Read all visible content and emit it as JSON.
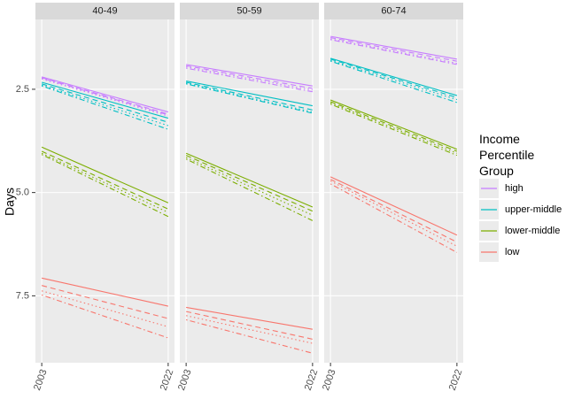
{
  "chart_data": {
    "type": "line",
    "ylabel": "Days",
    "x": [
      2003,
      2022
    ],
    "xlim": [
      2002.05,
      2022.95
    ],
    "xticks": [
      2003,
      2022
    ],
    "ylim": [
      0.81,
      9.12
    ],
    "yticks": [
      2.5,
      {
        "value": 5,
        "label": "5.0"
      },
      7.5
    ],
    "reverse_y": true,
    "grid": true,
    "legend": {
      "title": "Income Percentile Group",
      "entries": [
        {
          "name": "high",
          "color": "#C77CFF"
        },
        {
          "name": "upper-middle",
          "color": "#00BFC4"
        },
        {
          "name": "lower-middle",
          "color": "#7CAE00"
        },
        {
          "name": "low",
          "color": "#F8766D"
        }
      ]
    },
    "facets": [
      {
        "title": "40-49",
        "series": [
          {
            "name": "high",
            "color": "#C77CFF",
            "linetype": "solid",
            "values": [
              2.2,
              3.05
            ]
          },
          {
            "name": "high",
            "color": "#C77CFF",
            "linetype": "dashed",
            "values": [
              2.22,
              3.1
            ]
          },
          {
            "name": "high",
            "color": "#C77CFF",
            "linetype": "dotted",
            "values": [
              2.25,
              3.15
            ]
          },
          {
            "name": "high",
            "color": "#C77CFF",
            "linetype": "dotdash",
            "values": [
              2.23,
              3.12
            ]
          },
          {
            "name": "upper-middle",
            "color": "#00BFC4",
            "linetype": "solid",
            "values": [
              2.33,
              3.2
            ]
          },
          {
            "name": "upper-middle",
            "color": "#00BFC4",
            "linetype": "dashed",
            "values": [
              2.37,
              3.3
            ]
          },
          {
            "name": "upper-middle",
            "color": "#00BFC4",
            "linetype": "dotted",
            "values": [
              2.4,
              3.38
            ]
          },
          {
            "name": "upper-middle",
            "color": "#00BFC4",
            "linetype": "dotdash",
            "values": [
              2.42,
              3.47
            ]
          },
          {
            "name": "lower-middle",
            "color": "#7CAE00",
            "linetype": "solid",
            "values": [
              3.9,
              5.25
            ]
          },
          {
            "name": "lower-middle",
            "color": "#7CAE00",
            "linetype": "dashed",
            "values": [
              4.0,
              5.4
            ]
          },
          {
            "name": "lower-middle",
            "color": "#7CAE00",
            "linetype": "dotted",
            "values": [
              4.05,
              5.48
            ]
          },
          {
            "name": "lower-middle",
            "color": "#7CAE00",
            "linetype": "dotdash",
            "values": [
              4.08,
              5.58
            ]
          },
          {
            "name": "low",
            "color": "#F8766D",
            "linetype": "solid",
            "values": [
              7.07,
              7.75
            ]
          },
          {
            "name": "low",
            "color": "#F8766D",
            "linetype": "dashed",
            "values": [
              7.25,
              8.05
            ]
          },
          {
            "name": "low",
            "color": "#F8766D",
            "linetype": "dotted",
            "values": [
              7.38,
              8.25
            ]
          },
          {
            "name": "low",
            "color": "#F8766D",
            "linetype": "dotdash",
            "values": [
              7.48,
              8.52
            ]
          }
        ]
      },
      {
        "title": "50-59",
        "series": [
          {
            "name": "high",
            "color": "#C77CFF",
            "linetype": "solid",
            "values": [
              1.9,
              2.42
            ]
          },
          {
            "name": "high",
            "color": "#C77CFF",
            "linetype": "dashed",
            "values": [
              1.93,
              2.48
            ]
          },
          {
            "name": "high",
            "color": "#C77CFF",
            "linetype": "dotted",
            "values": [
              1.96,
              2.52
            ]
          },
          {
            "name": "high",
            "color": "#C77CFF",
            "linetype": "dotdash",
            "values": [
              1.99,
              2.56
            ]
          },
          {
            "name": "upper-middle",
            "color": "#00BFC4",
            "linetype": "solid",
            "values": [
              2.3,
              2.9
            ]
          },
          {
            "name": "upper-middle",
            "color": "#00BFC4",
            "linetype": "dashed",
            "values": [
              2.33,
              3.0
            ]
          },
          {
            "name": "upper-middle",
            "color": "#00BFC4",
            "linetype": "dotted",
            "values": [
              2.35,
              3.05
            ]
          },
          {
            "name": "upper-middle",
            "color": "#00BFC4",
            "linetype": "dotdash",
            "values": [
              2.37,
              3.08
            ]
          },
          {
            "name": "lower-middle",
            "color": "#7CAE00",
            "linetype": "solid",
            "values": [
              4.05,
              5.35
            ]
          },
          {
            "name": "lower-middle",
            "color": "#7CAE00",
            "linetype": "dashed",
            "values": [
              4.1,
              5.45
            ]
          },
          {
            "name": "lower-middle",
            "color": "#7CAE00",
            "linetype": "dotted",
            "values": [
              4.15,
              5.55
            ]
          },
          {
            "name": "lower-middle",
            "color": "#7CAE00",
            "linetype": "dotdash",
            "values": [
              4.19,
              5.68
            ]
          },
          {
            "name": "low",
            "color": "#F8766D",
            "linetype": "solid",
            "values": [
              7.78,
              8.31
            ]
          },
          {
            "name": "low",
            "color": "#F8766D",
            "linetype": "dashed",
            "values": [
              7.88,
              8.55
            ]
          },
          {
            "name": "low",
            "color": "#F8766D",
            "linetype": "dotted",
            "values": [
              7.98,
              8.65
            ]
          },
          {
            "name": "low",
            "color": "#F8766D",
            "linetype": "dotdash",
            "values": [
              8.08,
              8.89
            ]
          }
        ]
      },
      {
        "title": "60-74",
        "series": [
          {
            "name": "high",
            "color": "#C77CFF",
            "linetype": "solid",
            "values": [
              1.22,
              1.77
            ]
          },
          {
            "name": "high",
            "color": "#C77CFF",
            "linetype": "dashed",
            "values": [
              1.25,
              1.82
            ]
          },
          {
            "name": "high",
            "color": "#C77CFF",
            "linetype": "dotted",
            "values": [
              1.28,
              1.87
            ]
          },
          {
            "name": "high",
            "color": "#C77CFF",
            "linetype": "dotdash",
            "values": [
              1.3,
              1.9
            ]
          },
          {
            "name": "upper-middle",
            "color": "#00BFC4",
            "linetype": "solid",
            "values": [
              1.75,
              2.65
            ]
          },
          {
            "name": "upper-middle",
            "color": "#00BFC4",
            "linetype": "dashed",
            "values": [
              1.77,
              2.7
            ]
          },
          {
            "name": "upper-middle",
            "color": "#00BFC4",
            "linetype": "dotted",
            "values": [
              1.8,
              2.75
            ]
          },
          {
            "name": "upper-middle",
            "color": "#00BFC4",
            "linetype": "dotdash",
            "values": [
              1.82,
              2.82
            ]
          },
          {
            "name": "lower-middle",
            "color": "#7CAE00",
            "linetype": "solid",
            "values": [
              2.76,
              3.95
            ]
          },
          {
            "name": "lower-middle",
            "color": "#7CAE00",
            "linetype": "dashed",
            "values": [
              2.8,
              4.0
            ]
          },
          {
            "name": "lower-middle",
            "color": "#7CAE00",
            "linetype": "dotted",
            "values": [
              2.83,
              4.05
            ]
          },
          {
            "name": "lower-middle",
            "color": "#7CAE00",
            "linetype": "dotdash",
            "values": [
              2.86,
              4.1
            ]
          },
          {
            "name": "low",
            "color": "#F8766D",
            "linetype": "solid",
            "values": [
              4.62,
              6.03
            ]
          },
          {
            "name": "low",
            "color": "#F8766D",
            "linetype": "dashed",
            "values": [
              4.68,
              6.2
            ]
          },
          {
            "name": "low",
            "color": "#F8766D",
            "linetype": "dotted",
            "values": [
              4.72,
              6.3
            ]
          },
          {
            "name": "low",
            "color": "#F8766D",
            "linetype": "dotdash",
            "values": [
              4.79,
              6.45
            ]
          }
        ]
      }
    ]
  }
}
